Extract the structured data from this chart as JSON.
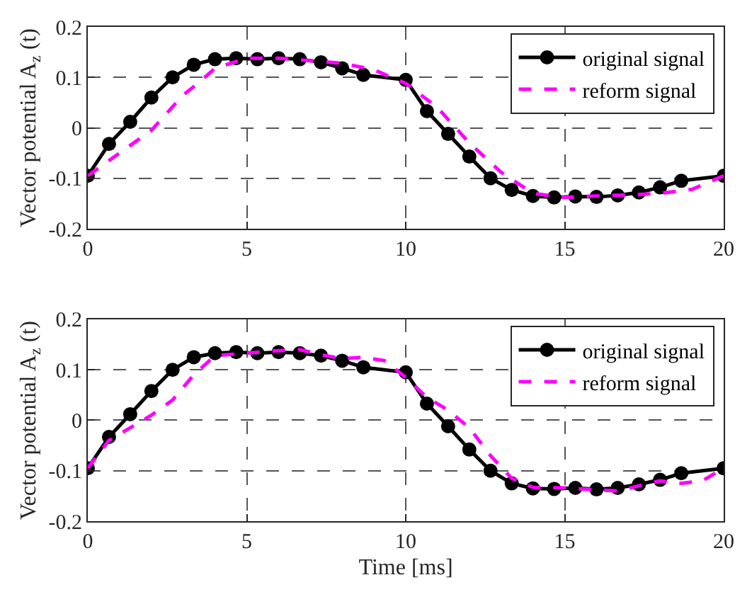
{
  "chart_data": [
    {
      "type": "line",
      "ylabel": "Vector potential A$_{z}$ (t)",
      "xlim": [
        0,
        20
      ],
      "xticks": [
        0,
        5,
        10,
        15,
        20
      ],
      "ylim": [
        -0.2,
        0.2
      ],
      "yticks": [
        -0.2,
        -0.1,
        0,
        0.1,
        0.2
      ],
      "grid": true,
      "legend": "top right",
      "series": [
        {
          "name": "original signal",
          "color": "#000000",
          "marker": "circle",
          "line_style": "solid",
          "x": [
            0,
            0.667,
            1.333,
            2,
            2.667,
            3.333,
            4,
            4.667,
            5.333,
            6,
            6.667,
            7.333,
            8,
            8.667,
            10,
            10.667,
            11.333,
            12,
            12.667,
            13.333,
            14,
            14.667,
            15.333,
            16,
            16.667,
            17.333,
            18,
            18.667,
            20
          ],
          "values": [
            -0.095,
            -0.032,
            0.012,
            0.06,
            0.1,
            0.125,
            0.136,
            0.138,
            0.136,
            0.138,
            0.136,
            0.13,
            0.118,
            0.105,
            0.095,
            0.033,
            -0.012,
            -0.057,
            -0.1,
            -0.123,
            -0.135,
            -0.138,
            -0.136,
            -0.137,
            -0.134,
            -0.128,
            -0.118,
            -0.105,
            -0.095
          ]
        },
        {
          "name": "reform signal",
          "color": "#ff00ff",
          "marker": "none",
          "line_style": "dashed",
          "x": [
            0,
            1,
            2,
            3,
            3.5,
            4,
            5,
            6,
            7,
            8,
            9,
            10,
            11,
            12,
            13,
            14,
            15,
            16,
            17,
            18,
            19,
            20
          ],
          "values": [
            -0.095,
            -0.05,
            -0.005,
            0.065,
            0.09,
            0.118,
            0.138,
            0.138,
            0.133,
            0.128,
            0.115,
            0.088,
            0.04,
            -0.03,
            -0.088,
            -0.13,
            -0.138,
            -0.135,
            -0.133,
            -0.13,
            -0.122,
            -0.095
          ]
        }
      ]
    },
    {
      "type": "line",
      "xlabel": "Time [ms]",
      "ylabel": "Vector potential A$_{z}$ (t)",
      "xlim": [
        0,
        20
      ],
      "xticks": [
        0,
        5,
        10,
        15,
        20
      ],
      "ylim": [
        -0.2,
        0.2
      ],
      "yticks": [
        -0.2,
        -0.1,
        0,
        0.1,
        0.2
      ],
      "grid": true,
      "legend": "top right",
      "series": [
        {
          "name": "original signal",
          "color": "#000000",
          "marker": "circle",
          "line_style": "solid",
          "x": [
            0,
            0.667,
            1.333,
            2,
            2.667,
            3.333,
            4,
            4.667,
            5.333,
            6,
            6.667,
            7.333,
            8,
            8.667,
            10,
            10.667,
            11.333,
            12,
            12.667,
            13.333,
            14,
            14.667,
            15.333,
            16,
            16.667,
            17.333,
            18,
            18.667,
            20
          ],
          "values": [
            -0.095,
            -0.033,
            0.012,
            0.058,
            0.1,
            0.125,
            0.133,
            0.135,
            0.133,
            0.135,
            0.133,
            0.128,
            0.118,
            0.105,
            0.095,
            0.033,
            -0.012,
            -0.058,
            -0.1,
            -0.125,
            -0.135,
            -0.136,
            -0.134,
            -0.137,
            -0.134,
            -0.127,
            -0.118,
            -0.105,
            -0.095
          ]
        },
        {
          "name": "reform signal",
          "color": "#ff00ff",
          "marker": "none",
          "line_style": "dashed",
          "x": [
            0,
            0.667,
            1.333,
            2,
            2.667,
            3.333,
            4,
            5,
            6,
            6.667,
            7.333,
            8,
            8.667,
            9.333,
            10,
            10.667,
            11.333,
            12,
            12.667,
            13.333,
            14,
            15,
            16,
            16.667,
            17.333,
            18,
            18.667,
            19.333,
            20
          ],
          "values": [
            -0.095,
            -0.04,
            -0.015,
            0.01,
            0.04,
            0.09,
            0.128,
            0.133,
            0.138,
            0.14,
            0.13,
            0.122,
            0.125,
            0.118,
            0.085,
            0.045,
            0.02,
            -0.015,
            -0.07,
            -0.115,
            -0.133,
            -0.134,
            -0.138,
            -0.14,
            -0.13,
            -0.12,
            -0.125,
            -0.12,
            -0.095
          ]
        }
      ]
    }
  ]
}
